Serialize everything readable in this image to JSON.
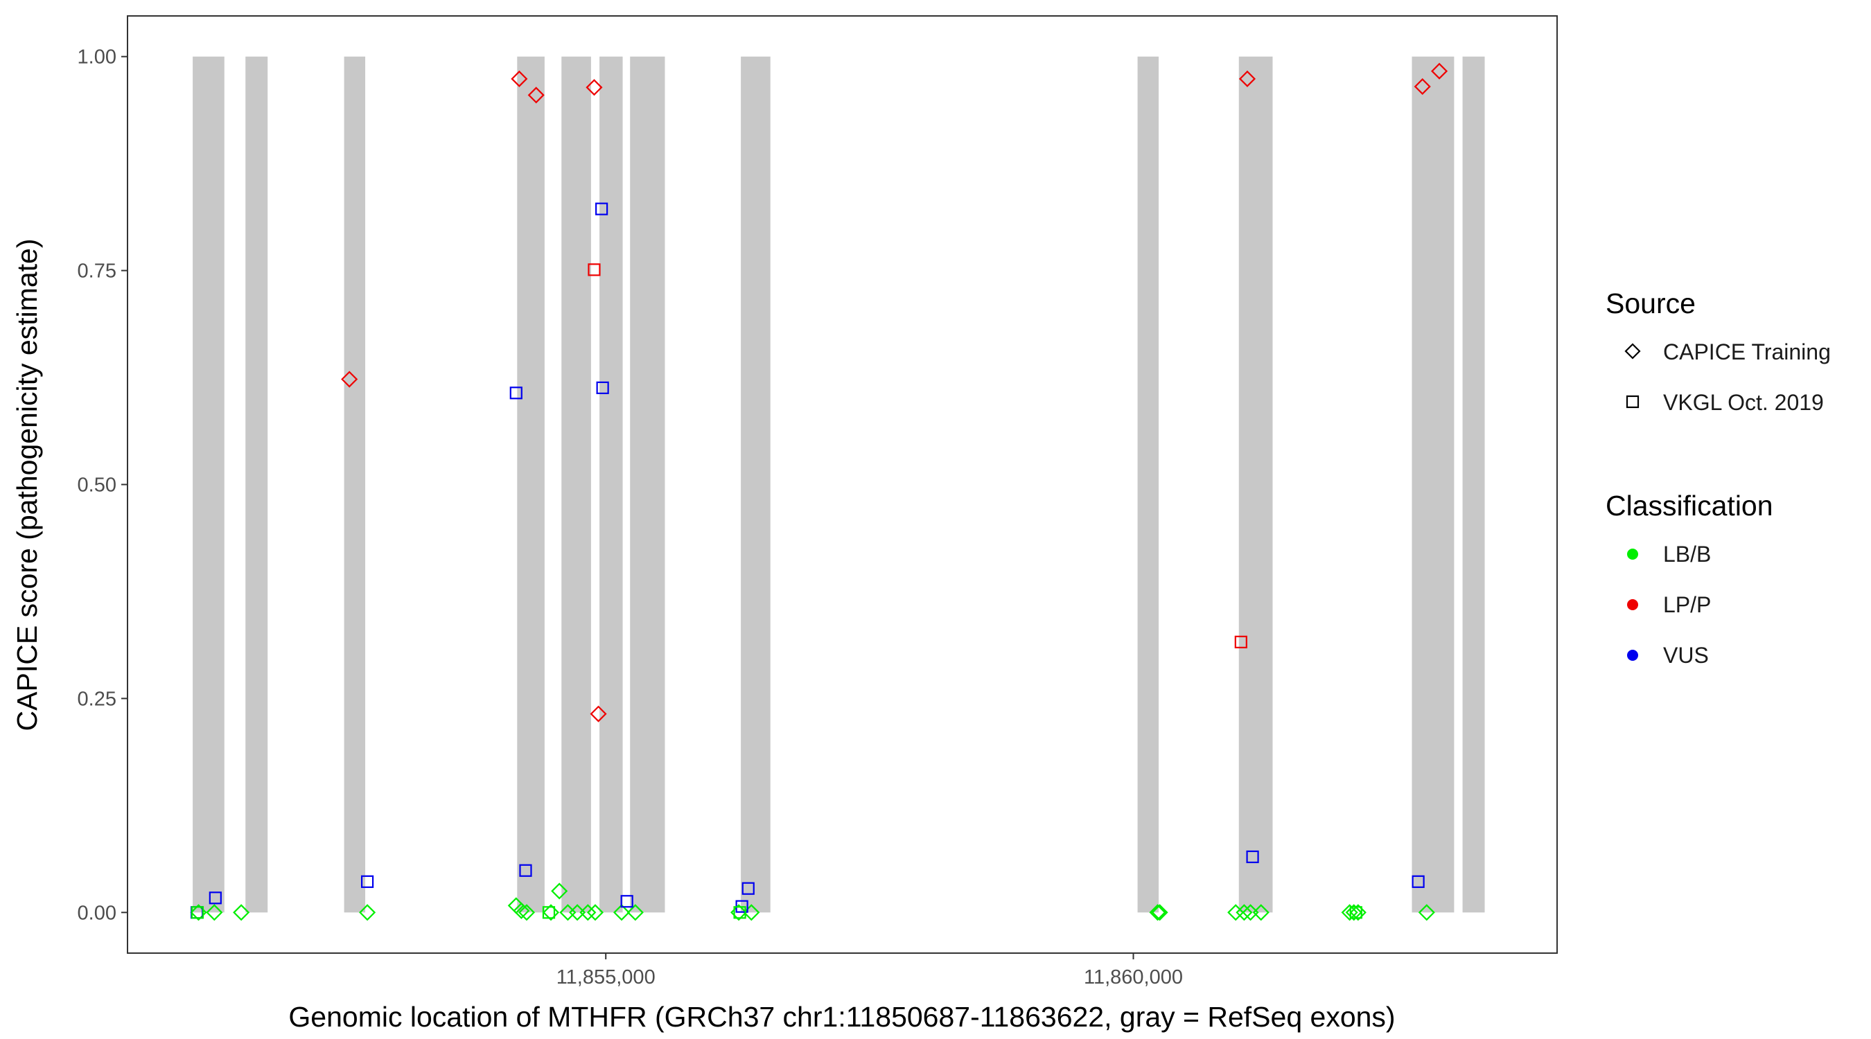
{
  "chart_data": {
    "type": "scatter",
    "title": "",
    "xlabel": "Genomic location of MTHFR (GRCh37 chr1:11850687-11863622, gray = RefSeq exons)",
    "ylabel": "CAPICE score (pathogenicity estimate)",
    "xlim": [
      11850467,
      11864016
    ],
    "ylim": [
      -0.0475,
      1.0475
    ],
    "x_ticks": [
      11855000,
      11860000
    ],
    "x_tick_labels": [
      "11,855,000",
      "11,860,000"
    ],
    "y_ticks": [
      0,
      0.25,
      0.5,
      0.75,
      1
    ],
    "y_tick_labels": [
      "0.00",
      "0.25",
      "0.50",
      "0.75",
      "1.00"
    ],
    "grid": false,
    "legend_position": "right",
    "exons": [
      [
        11851085,
        11851385
      ],
      [
        11851585,
        11851795
      ],
      [
        11852520,
        11852720
      ],
      [
        11854160,
        11854420
      ],
      [
        11854580,
        11854860
      ],
      [
        11854940,
        11855160
      ],
      [
        11855230,
        11855560
      ],
      [
        11856280,
        11856560
      ],
      [
        11860040,
        11860240
      ],
      [
        11861000,
        11861320
      ],
      [
        11862640,
        11863040
      ],
      [
        11863120,
        11863330
      ]
    ],
    "legend": {
      "source": {
        "title": "Source",
        "items": [
          {
            "label": "CAPICE Training",
            "shape": "diamond"
          },
          {
            "label": "VKGL Oct. 2019",
            "shape": "square"
          }
        ]
      },
      "classification": {
        "title": "Classification",
        "items": [
          {
            "label": "LB/B",
            "color": "#00ee00"
          },
          {
            "label": "LP/P",
            "color": "#ee0000"
          },
          {
            "label": "VUS",
            "color": "#0000ee"
          }
        ]
      }
    },
    "series": [
      {
        "source": "CAPICE Training",
        "classification": "LP/P",
        "points": [
          [
            11852570,
            0.623
          ],
          [
            11854180,
            0.974
          ],
          [
            11854340,
            0.955
          ],
          [
            11854890,
            0.964
          ],
          [
            11854930,
            0.232
          ],
          [
            11861080,
            0.974
          ],
          [
            11862740,
            0.965
          ],
          [
            11862900,
            0.983
          ]
        ]
      },
      {
        "source": "CAPICE Training",
        "classification": "LB/B",
        "points": [
          [
            11851140,
            0.0
          ],
          [
            11851290,
            0.0
          ],
          [
            11851545,
            0.0
          ],
          [
            11852740,
            0.0
          ],
          [
            11854150,
            0.008
          ],
          [
            11854200,
            0.002
          ],
          [
            11854250,
            0.0
          ],
          [
            11854480,
            0.0
          ],
          [
            11854560,
            0.025
          ],
          [
            11854640,
            0.0
          ],
          [
            11854730,
            0.0
          ],
          [
            11854830,
            0.0
          ],
          [
            11854900,
            0.0
          ],
          [
            11855150,
            0.0
          ],
          [
            11855280,
            0.0
          ],
          [
            11856260,
            0.0
          ],
          [
            11856380,
            0.0
          ],
          [
            11860230,
            0.0
          ],
          [
            11860250,
            0.0
          ],
          [
            11860970,
            0.0
          ],
          [
            11861050,
            0.0
          ],
          [
            11861110,
            0.0
          ],
          [
            11861210,
            0.0
          ],
          [
            11862050,
            0.0
          ],
          [
            11862090,
            0.0
          ],
          [
            11862130,
            0.0
          ],
          [
            11862780,
            0.0
          ]
        ]
      },
      {
        "source": "VKGL Oct. 2019",
        "classification": "VUS",
        "points": [
          [
            11851125,
            0.0
          ],
          [
            11851300,
            0.017
          ],
          [
            11852740,
            0.036
          ],
          [
            11854150,
            0.607
          ],
          [
            11854240,
            0.049
          ],
          [
            11854960,
            0.822
          ],
          [
            11854970,
            0.613
          ],
          [
            11855200,
            0.013
          ],
          [
            11856290,
            0.007
          ],
          [
            11856350,
            0.028
          ],
          [
            11861130,
            0.065
          ],
          [
            11862700,
            0.036
          ]
        ]
      },
      {
        "source": "VKGL Oct. 2019",
        "classification": "LP/P",
        "points": [
          [
            11854890,
            0.751
          ],
          [
            11861020,
            0.316
          ]
        ]
      },
      {
        "source": "VKGL Oct. 2019",
        "classification": "LB/B",
        "points": [
          [
            11851130,
            0.0
          ],
          [
            11854460,
            0.0
          ],
          [
            11856270,
            0.0
          ],
          [
            11862110,
            0.0
          ]
        ]
      }
    ]
  }
}
